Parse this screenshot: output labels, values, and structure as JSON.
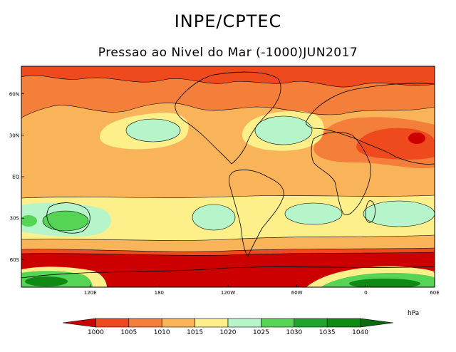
{
  "title": "INPE/CPTEC",
  "subtitle": "Pressao ao Nivel do Mar (-1000)JUN2017",
  "map": {
    "lon_range": [
      60,
      420
    ],
    "lat_range": [
      -80,
      80
    ],
    "lat_ticks": [
      {
        "value": 60,
        "label": "60N"
      },
      {
        "value": 30,
        "label": "30N"
      },
      {
        "value": 0,
        "label": "EQ"
      },
      {
        "value": -30,
        "label": "30S"
      },
      {
        "value": -60,
        "label": "60S"
      }
    ],
    "lon_ticks": [
      {
        "value": 120,
        "label": "120E"
      },
      {
        "value": 180,
        "label": "180"
      },
      {
        "value": 240,
        "label": "120W"
      },
      {
        "value": 300,
        "label": "60W"
      },
      {
        "value": 360,
        "label": "0"
      },
      {
        "value": 420,
        "label": "60E"
      }
    ]
  },
  "colorbar": {
    "unit": "hPa",
    "ticks": [
      "1000",
      "1005",
      "1010",
      "1015",
      "1020",
      "1025",
      "1030",
      "1035",
      "1040"
    ],
    "colors": [
      "#cd0000",
      "#ef4a1e",
      "#f47f3a",
      "#f9b45a",
      "#fdf08a",
      "#b5f5c9",
      "#55d455",
      "#1fa52f",
      "#0f8a14",
      "#0a6a10"
    ]
  }
}
